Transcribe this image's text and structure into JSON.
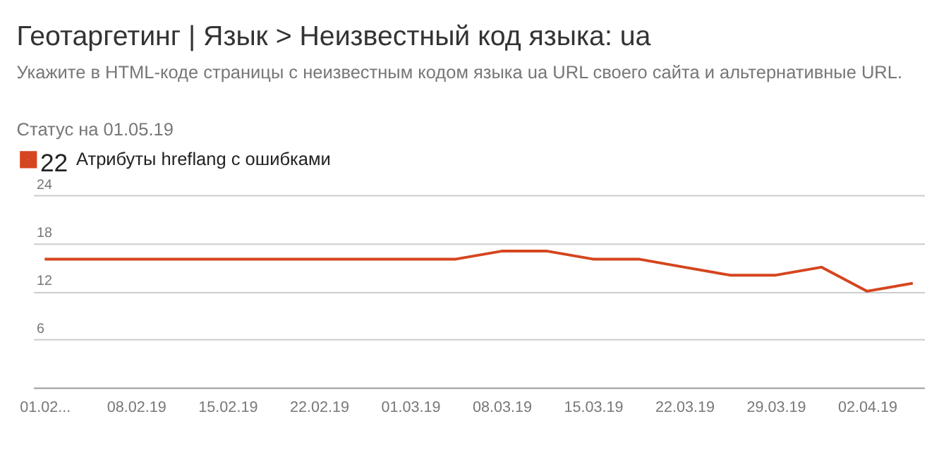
{
  "chart_data": {
    "type": "line",
    "title": "Геотаргетинг | Язык > Неизвестный код языка: ua",
    "subtitle": "Укажите в HTML-коде страницы с неизвестным кодом языка ua URL своего сайта и альтернативные URL.",
    "annotations": [
      "Статус на 01.05.19",
      "22"
    ],
    "categories": [
      "01.02...",
      null,
      "08.02.19",
      null,
      "15.02.19",
      null,
      "22.02.19",
      null,
      "01.03.19",
      null,
      "08.03.19",
      null,
      "15.03.19",
      null,
      "22.03.19",
      null,
      "29.03.19",
      null,
      "02.04.19",
      null
    ],
    "series": [
      {
        "name": "Атрибуты hreflang с ошибками",
        "color": "#d5451f",
        "values": [
          16,
          16,
          16,
          16,
          16,
          16,
          16,
          16,
          16,
          16,
          17,
          17,
          16,
          16,
          15,
          14,
          14,
          15,
          12,
          13
        ]
      }
    ],
    "ylim": [
      0,
      24
    ],
    "yticks": [
      6,
      12,
      18,
      24
    ],
    "grid": "y",
    "legend": "top left"
  }
}
